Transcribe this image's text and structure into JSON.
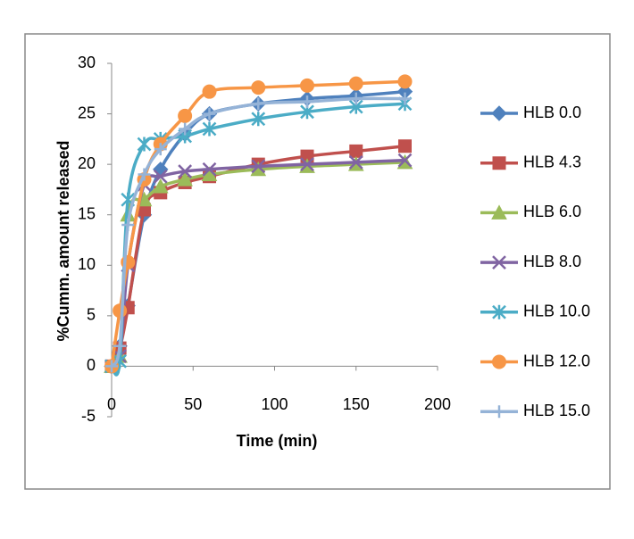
{
  "chart_data": {
    "type": "line",
    "x_label": "Time (min)",
    "y_label": "%Cumm. amount released",
    "x": [
      0,
      5,
      10,
      20,
      30,
      45,
      60,
      90,
      120,
      150,
      180
    ],
    "series": [
      {
        "name": "HLB 0.0",
        "color": "#4F81BD",
        "marker": "diamond",
        "values": [
          0,
          2,
          6,
          15,
          19.5,
          23,
          25,
          26,
          26.5,
          26.8,
          27.2
        ]
      },
      {
        "name": "HLB 4.3",
        "color": "#C0504D",
        "marker": "square",
        "values": [
          0,
          1.8,
          5.8,
          15.5,
          17.2,
          18.2,
          18.8,
          20,
          20.8,
          21.3,
          21.8
        ]
      },
      {
        "name": "HLB 6.0",
        "color": "#9BBB59",
        "marker": "triangle",
        "values": [
          0,
          1,
          15,
          16.5,
          17.8,
          18.5,
          19,
          19.5,
          19.8,
          20,
          20.2
        ]
      },
      {
        "name": "HLB 8.0",
        "color": "#8064A2",
        "marker": "x",
        "values": [
          0,
          1,
          10,
          18,
          18.8,
          19.3,
          19.5,
          19.8,
          20,
          20.2,
          20.4
        ]
      },
      {
        "name": "HLB 10.0",
        "color": "#4BACC6",
        "marker": "star",
        "values": [
          0,
          0.5,
          16.5,
          22,
          22.5,
          22.8,
          23.5,
          24.5,
          25.2,
          25.7,
          26
        ]
      },
      {
        "name": "HLB 12.0",
        "color": "#F79646",
        "marker": "circle",
        "values": [
          0,
          5.5,
          10.3,
          18.5,
          22,
          24.8,
          27.2,
          27.6,
          27.8,
          28,
          28.2
        ]
      },
      {
        "name": "HLB 15.0",
        "color": "#95B3D7",
        "marker": "plus",
        "values": [
          0,
          2,
          14,
          19,
          21.5,
          23.5,
          25,
          26,
          26.2,
          26.5,
          26.5
        ]
      }
    ],
    "xlim": [
      0,
      200
    ],
    "xticks": [
      0,
      50,
      100,
      150,
      200
    ],
    "ylim": [
      -5,
      30
    ],
    "yticks": [
      -5,
      0,
      5,
      10,
      15,
      20,
      25,
      30
    ],
    "legend": "right"
  }
}
